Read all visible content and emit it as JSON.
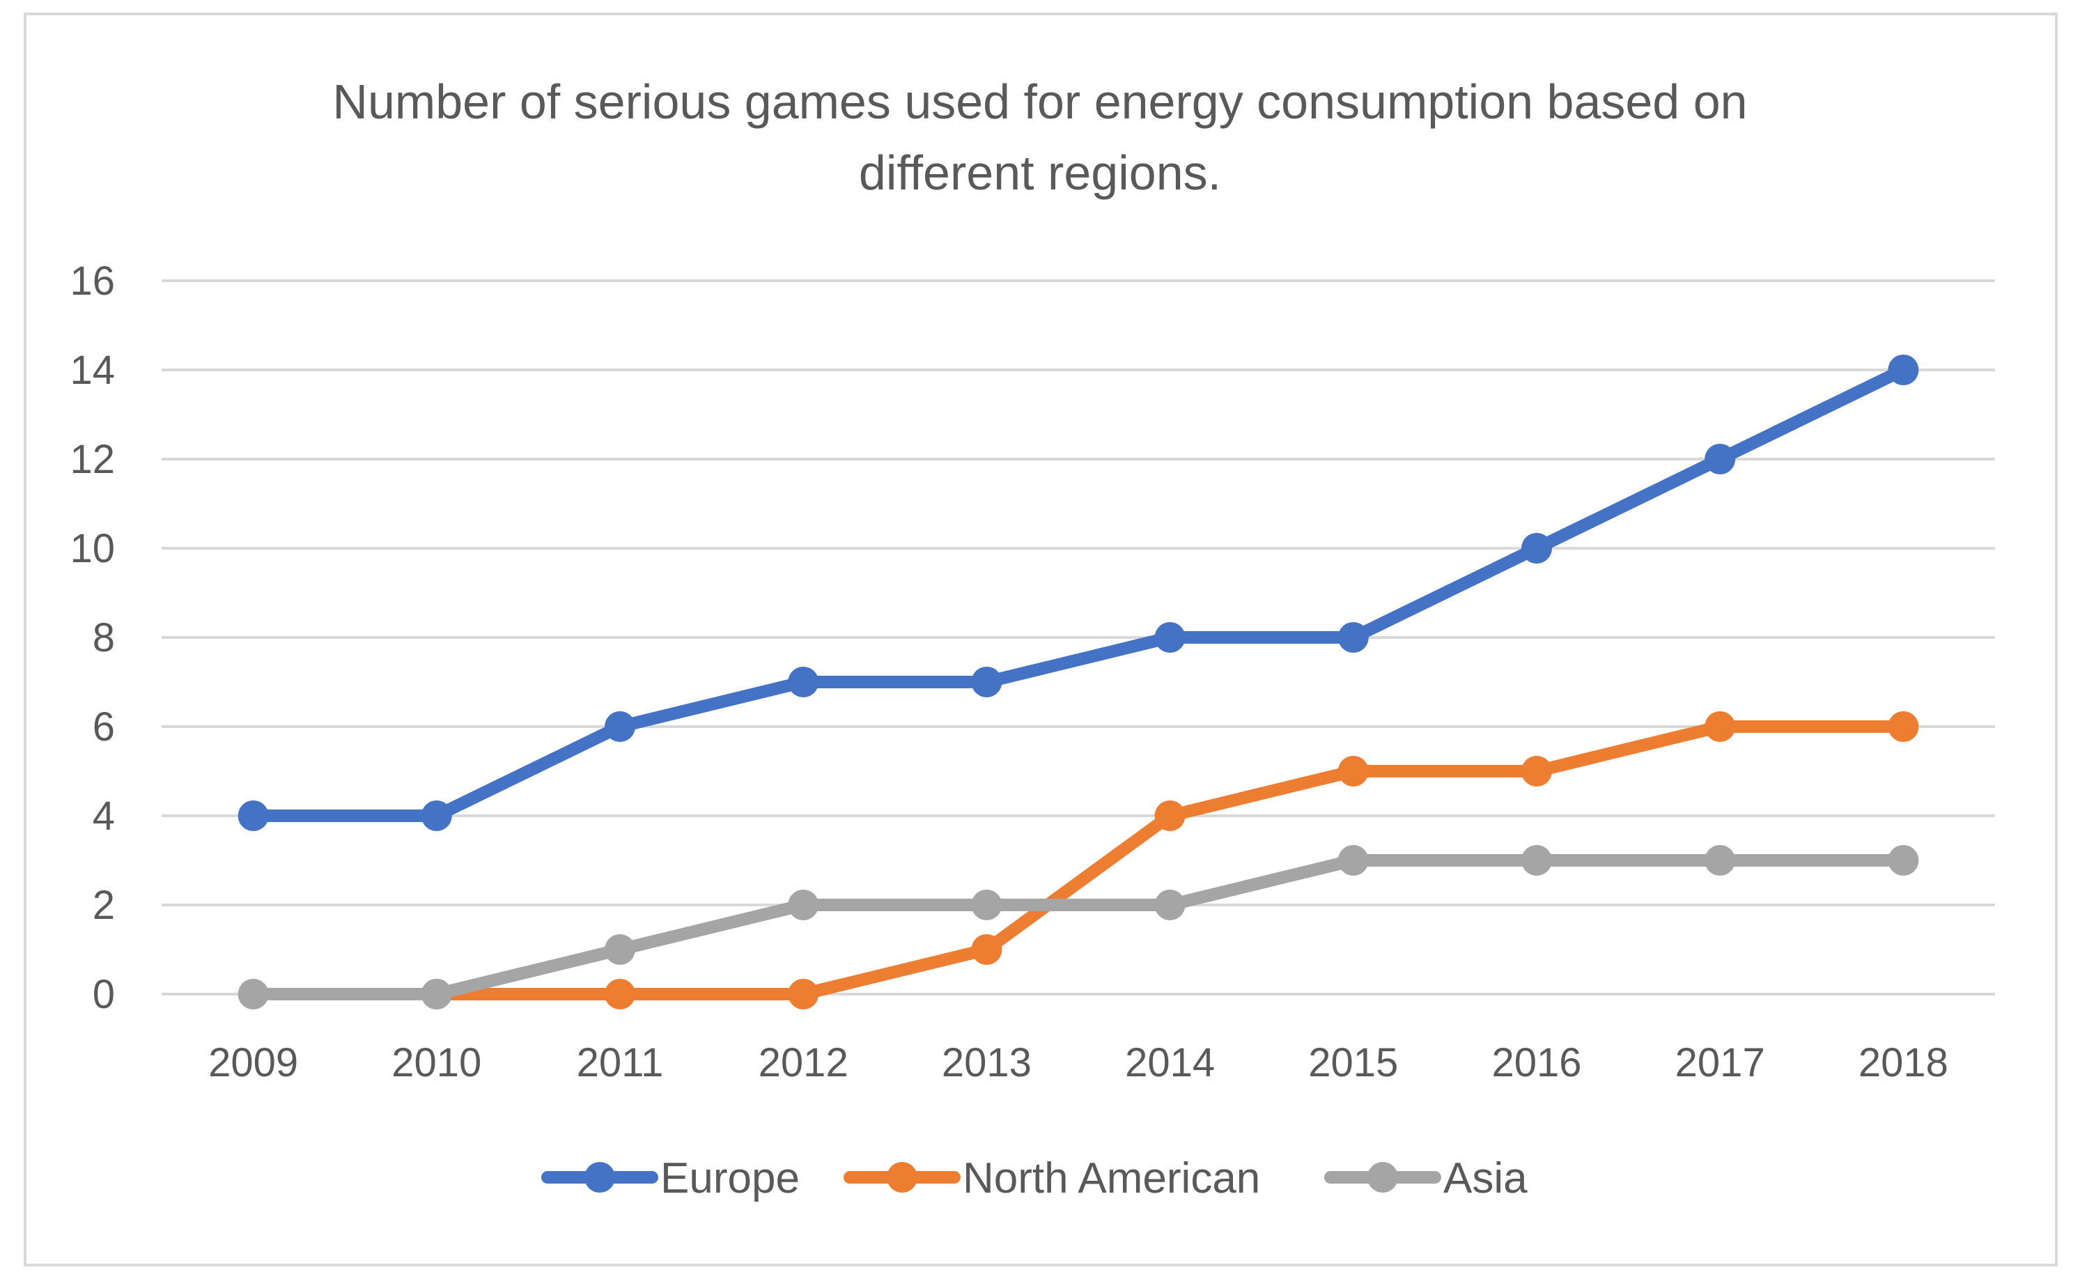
{
  "chart_data": {
    "type": "line",
    "title": "Number of serious games used for energy consumption based on different regions.",
    "title_lines": [
      "Number of serious games used for energy consumption based on",
      "different regions."
    ],
    "xlabel": "",
    "ylabel": "",
    "categories": [
      "2009",
      "2010",
      "2011",
      "2012",
      "2013",
      "2014",
      "2015",
      "2016",
      "2017",
      "2018"
    ],
    "ylim": [
      0,
      16
    ],
    "yticks": [
      0,
      2,
      4,
      6,
      8,
      10,
      12,
      14,
      16
    ],
    "grid": "horizontal",
    "legend_position": "bottom",
    "series": [
      {
        "name": "Europe",
        "color": "#4472c4",
        "values": [
          4,
          4,
          6,
          7,
          7,
          8,
          8,
          10,
          12,
          14
        ]
      },
      {
        "name": "North American",
        "color": "#ed7d31",
        "values": [
          null,
          0,
          0,
          0,
          1,
          4,
          5,
          5,
          6,
          6
        ]
      },
      {
        "name": "Asia",
        "color": "#a5a5a5",
        "values": [
          0,
          0,
          1,
          2,
          2,
          2,
          3,
          3,
          3,
          3
        ]
      }
    ]
  }
}
